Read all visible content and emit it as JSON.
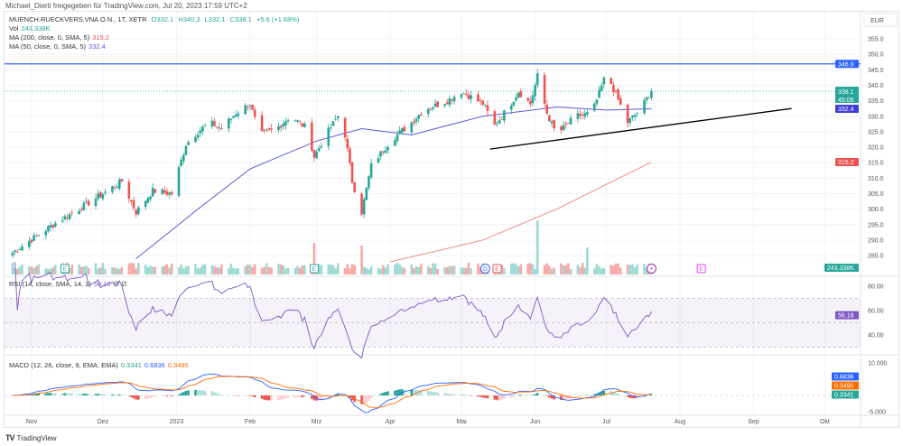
{
  "header": {
    "credit": "Michael_Dierti freigegeben für TradingView.com, Jul 20, 2023 17:59 UTC+2"
  },
  "legend": {
    "symbol": "MUENCH.RUECKVERS.VNA O.N., 1T, XETR",
    "open": "O332.1",
    "high": "H340.3",
    "low": "L332.1",
    "close": "C338.1",
    "change": "+5.6 (+1.68%)",
    "vol_label": "Vol",
    "vol_value": "243.338K",
    "ma200_label": "MA (200, close, 0, SMA, 5)",
    "ma200_value": "315.2",
    "ma50_label": "MA (50, close, 0, SMA, 5)",
    "ma50_value": "332.4",
    "rsi_label": "RSI (14, close, SMA, 14, 2)",
    "rsi_value": "56.18",
    "rsi_extra": "∅ ∅",
    "macd_label": "MACD (12, 26, close, 9, EMA, EMA)",
    "macd_hist": "0.3341",
    "macd_line": "0.6836",
    "macd_signal": "0.3495"
  },
  "footer": {
    "logo": "TV",
    "brand": "TradingView"
  },
  "colors": {
    "up": "#26a69a",
    "down": "#ef5350",
    "ma50": "#5b5bd6",
    "ma200": "#f28b82",
    "resistance": "#2962ff",
    "rsi": "#7e57c2",
    "macd": "#2962ff",
    "signal": "#ff6d00"
  },
  "chart_data": [
    {
      "type": "candlestick",
      "currency": "EUR",
      "y_ticks": [
        "355.0",
        "350.0",
        "345.0",
        "340.0",
        "335.0",
        "330.0",
        "325.0",
        "320.0",
        "315.0",
        "310.0",
        "305.0",
        "300.0",
        "295.0",
        "290.0",
        "285.0"
      ],
      "ylim": [
        283,
        358
      ],
      "x_ticks": [
        [
          "2022-11-01",
          "Nov"
        ],
        [
          "2022-12-01",
          "Dez"
        ],
        [
          "2023-01-01",
          "2023"
        ],
        [
          "2023-02-01",
          "Feb"
        ],
        [
          "2023-03-01",
          "Mrz"
        ],
        [
          "2023-04-01",
          "Apr"
        ],
        [
          "2023-05-01",
          "Mai"
        ],
        [
          "2023-06-01",
          "Jun"
        ],
        [
          "2023-07-01",
          "Jul"
        ],
        [
          "2023-08-01",
          "Aug"
        ],
        [
          "2023-09-01",
          "Sep"
        ],
        [
          "2023-10-01",
          "Okt"
        ]
      ],
      "close_path": [
        [
          "2022-10-24",
          286
        ],
        [
          "2022-11-10",
          295
        ],
        [
          "2022-11-25",
          302
        ],
        [
          "2022-12-01",
          305
        ],
        [
          "2022-12-09",
          309
        ],
        [
          "2022-12-15",
          299
        ],
        [
          "2022-12-22",
          306
        ],
        [
          "2022-12-30",
          305
        ],
        [
          "2023-01-05",
          321
        ],
        [
          "2023-01-10",
          325
        ],
        [
          "2023-01-15",
          328
        ],
        [
          "2023-01-20",
          326
        ],
        [
          "2023-01-26",
          331
        ],
        [
          "2023-02-01",
          334
        ],
        [
          "2023-02-05",
          324
        ],
        [
          "2023-02-12",
          326
        ],
        [
          "2023-02-18",
          330
        ],
        [
          "2023-02-25",
          326
        ],
        [
          "2023-02-28",
          317
        ],
        [
          "2023-03-05",
          324
        ],
        [
          "2023-03-10",
          330
        ],
        [
          "2023-03-13",
          324
        ],
        [
          "2023-03-16",
          309
        ],
        [
          "2023-03-20",
          299
        ],
        [
          "2023-03-24",
          314
        ],
        [
          "2023-04-01",
          322
        ],
        [
          "2023-04-10",
          328
        ],
        [
          "2023-04-15",
          332
        ],
        [
          "2023-04-25",
          335
        ],
        [
          "2023-05-01",
          338
        ],
        [
          "2023-05-10",
          334
        ],
        [
          "2023-05-15",
          327
        ],
        [
          "2023-05-20",
          332
        ],
        [
          "2023-05-25",
          338
        ],
        [
          "2023-05-30",
          334
        ],
        [
          "2023-06-02",
          343
        ],
        [
          "2023-06-06",
          331
        ],
        [
          "2023-06-10",
          324
        ],
        [
          "2023-06-18",
          330
        ],
        [
          "2023-06-25",
          331
        ],
        [
          "2023-07-01",
          344
        ],
        [
          "2023-07-05",
          337
        ],
        [
          "2023-07-10",
          328
        ],
        [
          "2023-07-15",
          332
        ],
        [
          "2023-07-20",
          338.1
        ]
      ],
      "ma50": [
        [
          "2022-12-15",
          284
        ],
        [
          "2023-01-10",
          300
        ],
        [
          "2023-02-01",
          313
        ],
        [
          "2023-03-01",
          322
        ],
        [
          "2023-03-20",
          326
        ],
        [
          "2023-04-10",
          324
        ],
        [
          "2023-05-10",
          330
        ],
        [
          "2023-06-10",
          333
        ],
        [
          "2023-07-01",
          332
        ],
        [
          "2023-07-20",
          332.4
        ]
      ],
      "ma200": [
        [
          "2023-04-01",
          283
        ],
        [
          "2023-05-10",
          290
        ],
        [
          "2023-06-10",
          300
        ],
        [
          "2023-07-01",
          308
        ],
        [
          "2023-07-20",
          315.2
        ]
      ],
      "resistance": 346.9,
      "trendline": [
        [
          "2023-05-13",
          319.4
        ],
        [
          "2023-09-17",
          332.5
        ]
      ],
      "last_price": {
        "value": "338.1",
        "countdown": "45:05"
      },
      "volume_last": "243.338K",
      "volume_spikes": [
        [
          "2023-02-28",
          3.5
        ],
        [
          "2023-03-20",
          3.2
        ],
        [
          "2023-06-02",
          6.0
        ],
        [
          "2023-06-23",
          3.0
        ]
      ],
      "events": [
        [
          "2022-11-15",
          "E"
        ],
        [
          "2023-02-28",
          "E"
        ],
        [
          "2023-05-11",
          "D"
        ],
        [
          "2023-05-16",
          "E"
        ],
        [
          "2023-07-20",
          "⚡"
        ],
        [
          "2023-08-10",
          "E"
        ]
      ]
    },
    {
      "type": "line",
      "name": "RSI",
      "y_ticks": [
        "80.00",
        "60.00",
        "40.00"
      ],
      "ylim": [
        22,
        88
      ],
      "bands": [
        70,
        50,
        30
      ],
      "last": "56.18"
    },
    {
      "type": "line",
      "name": "MACD",
      "y_ticks": [
        "10.000",
        "-5.000"
      ],
      "ylim": [
        -7,
        12
      ],
      "last": [
        "0.6836",
        "0.3495",
        "0.3341"
      ]
    }
  ]
}
